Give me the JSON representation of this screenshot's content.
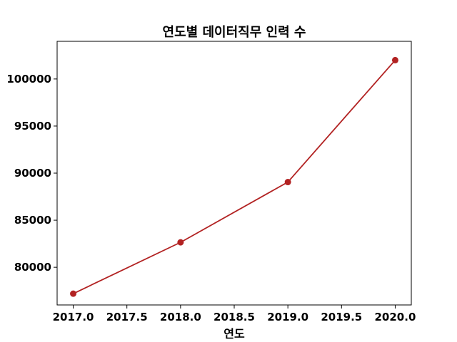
{
  "chart_data": {
    "type": "line",
    "title": "연도별 데이터직무 인력 수",
    "xlabel": "연도",
    "ylabel": "",
    "x": [
      2017,
      2018,
      2019,
      2020
    ],
    "series": [
      {
        "values": [
          77200,
          82650,
          89050,
          102000
        ],
        "color": "#b22222"
      }
    ],
    "xlim": [
      2016.85,
      2020.15
    ],
    "ylim": [
      76000,
      104000
    ],
    "xticks": [
      2017.0,
      2017.5,
      2018.0,
      2018.5,
      2019.0,
      2019.5,
      2020.0
    ],
    "xtick_labels": [
      "2017.0",
      "2017.5",
      "2018.0",
      "2018.5",
      "2019.0",
      "2019.5",
      "2020.0"
    ],
    "yticks": [
      80000,
      85000,
      90000,
      95000,
      100000
    ],
    "ytick_labels": [
      "80000",
      "85000",
      "90000",
      "95000",
      "100000"
    ],
    "grid": false,
    "marker": "circle"
  }
}
